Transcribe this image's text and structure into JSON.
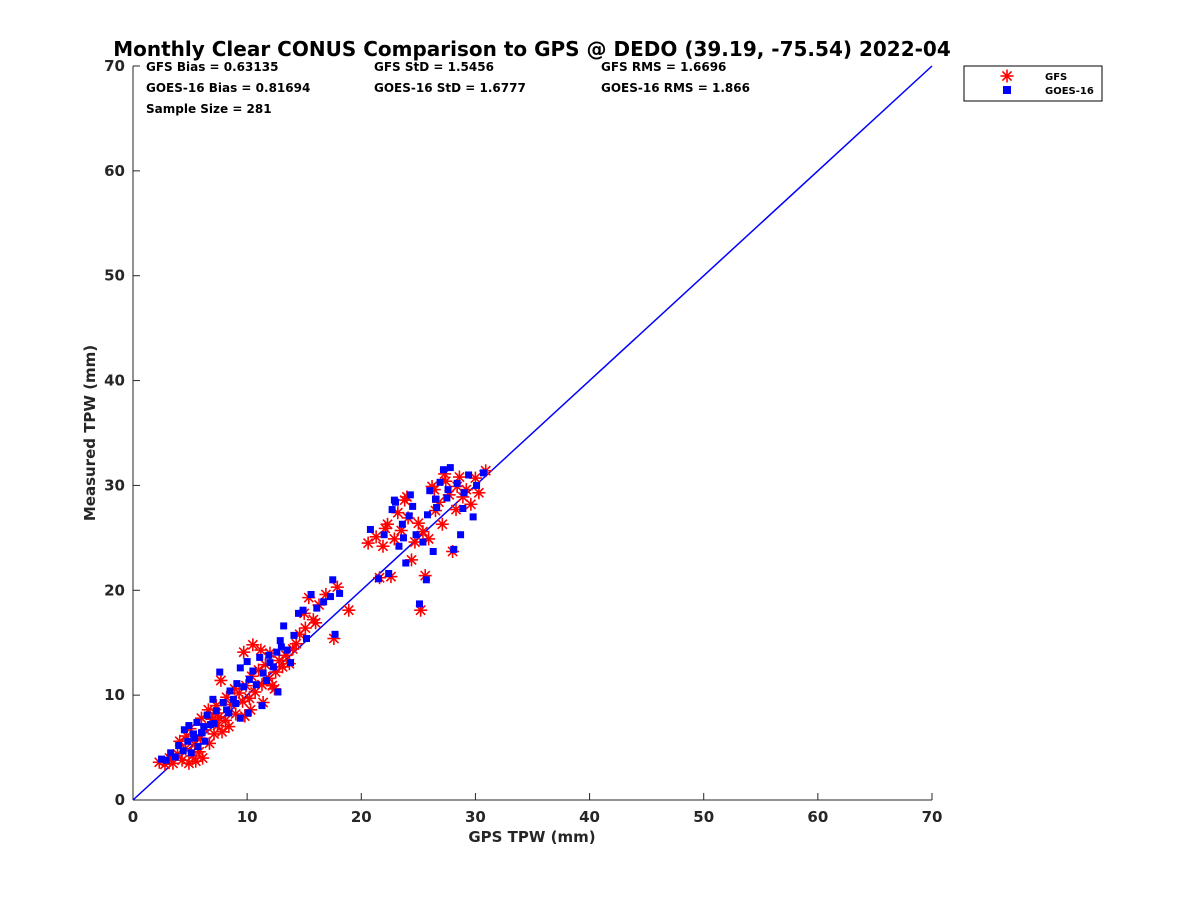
{
  "chart_data": {
    "type": "scatter",
    "title": "Monthly Clear CONUS Comparison to GPS @ DEDO (39.19, -75.54) 2022-04",
    "xlabel": "GPS TPW (mm)",
    "ylabel": "Measured TPW (mm)",
    "xlim": [
      0,
      70
    ],
    "ylim": [
      0,
      70
    ],
    "xticks": [
      "0",
      "10",
      "20",
      "30",
      "40",
      "50",
      "60",
      "70"
    ],
    "yticks": [
      "0",
      "10",
      "20",
      "30",
      "40",
      "50",
      "60",
      "70"
    ],
    "grid": false,
    "legend_position": "top-right, outside plot",
    "stats": {
      "gfs_bias": "GFS Bias = 0.63135",
      "gfs_std": "GFS StD = 1.5456",
      "gfs_rms": "GFS RMS = 1.6696",
      "goes_bias": "GOES-16 Bias = 0.81694",
      "goes_std": "GOES-16 StD = 1.6777",
      "goes_rms": "GOES-16 RMS = 1.866",
      "sample_size": "Sample Size = 281"
    },
    "reference_line": {
      "x": [
        0,
        70
      ],
      "y": [
        0,
        70
      ],
      "color": "#0000ff"
    },
    "series": [
      {
        "name": "GFS",
        "marker": "asterisk",
        "color": "#ff0000",
        "points": [
          [
            2.3,
            3.6
          ],
          [
            2.8,
            3.4
          ],
          [
            3.2,
            4.0
          ],
          [
            3.5,
            3.5
          ],
          [
            3.9,
            4.4
          ],
          [
            4.3,
            3.8
          ],
          [
            4.6,
            4.9
          ],
          [
            4.9,
            3.5
          ],
          [
            5.2,
            4.2
          ],
          [
            5.5,
            3.7
          ],
          [
            5.8,
            4.6
          ],
          [
            6.1,
            4.0
          ],
          [
            4.1,
            5.6
          ],
          [
            4.7,
            6.1
          ],
          [
            5.0,
            6.8
          ],
          [
            5.4,
            5.3
          ],
          [
            5.9,
            5.9
          ],
          [
            6.3,
            6.7
          ],
          [
            6.7,
            5.4
          ],
          [
            7.1,
            6.3
          ],
          [
            7.4,
            7.1
          ],
          [
            7.8,
            6.5
          ],
          [
            8.1,
            7.6
          ],
          [
            8.4,
            7.0
          ],
          [
            6.0,
            7.8
          ],
          [
            6.6,
            8.6
          ],
          [
            7.2,
            8.3
          ],
          [
            7.7,
            11.4
          ],
          [
            8.6,
            9.1
          ],
          [
            9.0,
            8.2
          ],
          [
            9.3,
            10.2
          ],
          [
            9.6,
            9.4
          ],
          [
            9.9,
            10.9
          ],
          [
            10.2,
            9.7
          ],
          [
            10.4,
            11.8
          ],
          [
            10.7,
            10.3
          ],
          [
            11.0,
            12.4
          ],
          [
            11.3,
            11.0
          ],
          [
            11.6,
            12.9
          ],
          [
            11.9,
            11.6
          ],
          [
            12.2,
            10.9
          ],
          [
            12.5,
            12.2
          ],
          [
            12.8,
            13.3
          ],
          [
            13.1,
            12.7
          ],
          [
            13.4,
            13.8
          ],
          [
            13.7,
            13.0
          ],
          [
            14.0,
            14.4
          ],
          [
            9.7,
            14.1
          ],
          [
            10.5,
            14.8
          ],
          [
            11.2,
            14.3
          ],
          [
            12.0,
            14.0
          ],
          [
            9.8,
            8.0
          ],
          [
            10.3,
            8.6
          ],
          [
            11.4,
            9.3
          ],
          [
            12.4,
            10.6
          ],
          [
            8.2,
            9.8
          ],
          [
            8.9,
            10.6
          ],
          [
            7.3,
            9.0
          ],
          [
            6.9,
            7.7
          ],
          [
            7.5,
            7.9
          ],
          [
            14.3,
            14.9
          ],
          [
            14.6,
            15.8
          ],
          [
            15.1,
            16.4
          ],
          [
            15.4,
            19.3
          ],
          [
            15.8,
            17.2
          ],
          [
            16.3,
            18.6
          ],
          [
            16.9,
            19.6
          ],
          [
            17.6,
            15.4
          ],
          [
            17.9,
            20.3
          ],
          [
            18.9,
            18.1
          ],
          [
            15.0,
            17.8
          ],
          [
            16.0,
            16.9
          ],
          [
            20.6,
            24.5
          ],
          [
            21.3,
            25.1
          ],
          [
            21.9,
            24.2
          ],
          [
            22.3,
            26.3
          ],
          [
            22.6,
            21.3
          ],
          [
            22.9,
            24.9
          ],
          [
            23.2,
            27.4
          ],
          [
            23.5,
            25.7
          ],
          [
            23.8,
            28.6
          ],
          [
            24.1,
            26.9
          ],
          [
            24.4,
            22.9
          ],
          [
            24.7,
            24.6
          ],
          [
            25.0,
            26.4
          ],
          [
            25.2,
            18.1
          ],
          [
            25.6,
            21.4
          ],
          [
            25.9,
            24.9
          ],
          [
            26.2,
            29.9
          ],
          [
            26.5,
            27.6
          ],
          [
            26.8,
            28.4
          ],
          [
            27.1,
            26.3
          ],
          [
            27.4,
            30.4
          ],
          [
            27.7,
            29.1
          ],
          [
            28.0,
            23.7
          ],
          [
            28.3,
            27.7
          ],
          [
            28.6,
            30.8
          ],
          [
            28.9,
            28.9
          ],
          [
            29.2,
            29.6
          ],
          [
            29.6,
            28.2
          ],
          [
            30.0,
            30.7
          ],
          [
            30.3,
            29.3
          ],
          [
            30.9,
            31.4
          ],
          [
            21.6,
            21.2
          ],
          [
            22.1,
            25.9
          ],
          [
            27.3,
            31.1
          ],
          [
            28.4,
            29.9
          ],
          [
            25.4,
            25.6
          ],
          [
            24.0,
            28.9
          ],
          [
            26.4,
            29.6
          ]
        ]
      },
      {
        "name": "GOES-16",
        "marker": "square",
        "color": "#0000ff",
        "points": [
          [
            2.5,
            3.9
          ],
          [
            2.9,
            3.8
          ],
          [
            3.3,
            4.5
          ],
          [
            3.7,
            4.1
          ],
          [
            4.0,
            5.2
          ],
          [
            4.4,
            4.7
          ],
          [
            4.8,
            5.6
          ],
          [
            5.1,
            4.5
          ],
          [
            5.4,
            5.9
          ],
          [
            5.7,
            5.1
          ],
          [
            6.0,
            6.4
          ],
          [
            6.3,
            5.6
          ],
          [
            4.5,
            6.7
          ],
          [
            4.9,
            7.1
          ],
          [
            5.3,
            6.3
          ],
          [
            5.6,
            7.4
          ],
          [
            6.2,
            7.0
          ],
          [
            6.5,
            8.1
          ],
          [
            6.8,
            7.2
          ],
          [
            7.0,
            9.6
          ],
          [
            7.3,
            8.5
          ],
          [
            7.6,
            12.2
          ],
          [
            7.9,
            9.3
          ],
          [
            8.2,
            8.6
          ],
          [
            8.5,
            10.4
          ],
          [
            8.8,
            9.6
          ],
          [
            9.1,
            11.1
          ],
          [
            9.4,
            12.6
          ],
          [
            9.7,
            10.8
          ],
          [
            10.0,
            13.2
          ],
          [
            10.2,
            11.5
          ],
          [
            10.5,
            12.3
          ],
          [
            10.8,
            11.0
          ],
          [
            11.1,
            13.6
          ],
          [
            11.4,
            12.1
          ],
          [
            11.7,
            11.4
          ],
          [
            12.0,
            13.1
          ],
          [
            12.3,
            12.7
          ],
          [
            12.6,
            14.1
          ],
          [
            12.9,
            15.2
          ],
          [
            13.2,
            16.6
          ],
          [
            13.5,
            14.3
          ],
          [
            13.8,
            13.1
          ],
          [
            14.1,
            15.7
          ],
          [
            14.5,
            17.8
          ],
          [
            14.9,
            18.1
          ],
          [
            15.2,
            15.4
          ],
          [
            15.6,
            19.6
          ],
          [
            16.1,
            18.3
          ],
          [
            16.7,
            18.9
          ],
          [
            17.3,
            19.4
          ],
          [
            17.7,
            15.8
          ],
          [
            17.5,
            21.0
          ],
          [
            18.1,
            19.7
          ],
          [
            9.4,
            7.8
          ],
          [
            10.1,
            8.3
          ],
          [
            11.3,
            9.0
          ],
          [
            12.7,
            10.3
          ],
          [
            8.4,
            8.3
          ],
          [
            7.1,
            7.3
          ],
          [
            20.8,
            25.8
          ],
          [
            21.5,
            21.1
          ],
          [
            22.0,
            25.3
          ],
          [
            22.4,
            21.6
          ],
          [
            22.7,
            27.7
          ],
          [
            23.0,
            28.4
          ],
          [
            23.3,
            24.2
          ],
          [
            23.6,
            26.3
          ],
          [
            23.9,
            22.6
          ],
          [
            24.2,
            27.1
          ],
          [
            24.5,
            28.0
          ],
          [
            24.8,
            25.3
          ],
          [
            25.1,
            18.7
          ],
          [
            25.4,
            24.6
          ],
          [
            25.7,
            21.0
          ],
          [
            26.0,
            29.5
          ],
          [
            26.3,
            23.7
          ],
          [
            26.6,
            27.9
          ],
          [
            26.9,
            30.3
          ],
          [
            27.2,
            31.5
          ],
          [
            27.5,
            28.8
          ],
          [
            27.8,
            31.7
          ],
          [
            28.1,
            23.9
          ],
          [
            28.4,
            30.2
          ],
          [
            28.7,
            25.3
          ],
          [
            29.0,
            29.3
          ],
          [
            29.4,
            31.0
          ],
          [
            29.8,
            27.0
          ],
          [
            30.1,
            30.0
          ],
          [
            30.7,
            31.2
          ],
          [
            24.3,
            29.1
          ],
          [
            26.5,
            28.7
          ],
          [
            22.9,
            28.6
          ],
          [
            25.8,
            27.2
          ],
          [
            28.9,
            27.8
          ],
          [
            27.6,
            29.6
          ],
          [
            23.7,
            25.0
          ],
          [
            11.9,
            13.8
          ],
          [
            13.0,
            14.6
          ],
          [
            9.0,
            9.2
          ]
        ]
      }
    ]
  }
}
